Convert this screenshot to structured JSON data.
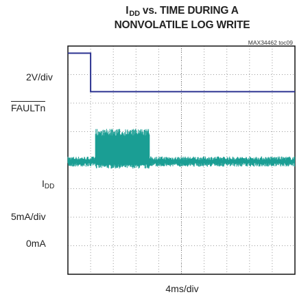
{
  "chart_data": {
    "type": "line",
    "title_prefix": "I",
    "title_sub": "DD",
    "title_rest": " vs. TIME DURING A",
    "title_line2": "NONVOLATILE LOG WRITE",
    "figure_code": "MAX34462 toc09",
    "xlabel": "4ms/div",
    "grid": true,
    "x_divisions": 10,
    "y_divisions": 8,
    "channels": [
      {
        "signal_label": "FAULTn",
        "overline": true,
        "scale_label": "2V/div",
        "color": "#2b3290",
        "x_div": [
          0,
          1.0,
          1.0,
          10
        ],
        "y_div": [
          7.75,
          7.75,
          6.4,
          6.4
        ]
      },
      {
        "signal_label_prefix": "I",
        "signal_label_sub": "DD",
        "scale_label": "5mA/div",
        "zero_label": "0mA",
        "color": "#1a9e94",
        "baseline_div": 3.95,
        "baseline_noise_div": 0.18,
        "burst_x_div": [
          1.2,
          3.6
        ],
        "burst_low_div": 3.7,
        "burst_high_div": 5.1
      }
    ]
  }
}
